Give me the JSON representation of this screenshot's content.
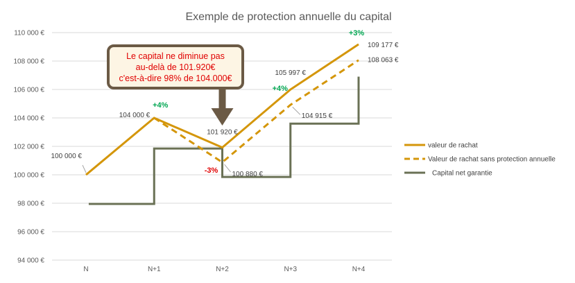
{
  "chart_data": {
    "type": "line",
    "title": "Exemple de protection annuelle du capital",
    "xlabel": "",
    "ylabel": "",
    "categories": [
      "N",
      "N+1",
      "N+2",
      "N+3",
      "N+4"
    ],
    "ylim": [
      94000,
      110000
    ],
    "yticks": [
      94000,
      96000,
      98000,
      100000,
      102000,
      104000,
      106000,
      108000,
      110000
    ],
    "ytick_labels": [
      "94 000 €",
      "96 000 €",
      "98 000 €",
      "100 000 €",
      "102 000 €",
      "104 000 €",
      "106 000 €",
      "108 000 €",
      "110 000 €"
    ],
    "grid": true,
    "legend_position": "right",
    "series": [
      {
        "name": "valeur de rachat",
        "style": "solid",
        "color": "#D4960A",
        "x": [
          0,
          1,
          2,
          3,
          4
        ],
        "values": [
          100000,
          104000,
          101920,
          105997,
          109177
        ]
      },
      {
        "name": "Valeur de rachat sans protection annuelle",
        "style": "dashed",
        "color": "#D4960A",
        "x": [
          1,
          2,
          3,
          4
        ],
        "values": [
          104000,
          100880,
          104915,
          108063
        ]
      },
      {
        "name": "Capital net garantie",
        "style": "step",
        "color": "#6A7155",
        "x": [
          0.04,
          1,
          1,
          2,
          2,
          3,
          3,
          4,
          4
        ],
        "values": [
          97950,
          97950,
          101850,
          101850,
          99850,
          99850,
          103600,
          103600,
          106900
        ]
      }
    ],
    "data_labels": [
      {
        "text": "100 000 €",
        "x": 0,
        "y": 100000
      },
      {
        "text": "104 000 €",
        "x": 1,
        "y": 104000
      },
      {
        "text": "101 920 €",
        "x": 2,
        "y": 101920
      },
      {
        "text": "100 880 €",
        "x": 2,
        "y": 100880
      },
      {
        "text": "105 997 €",
        "x": 3,
        "y": 105997
      },
      {
        "text": "104 915 €",
        "x": 3,
        "y": 104915
      },
      {
        "text": "109 177 €",
        "x": 4,
        "y": 109177
      },
      {
        "text": "108 063 €",
        "x": 4,
        "y": 108063
      }
    ],
    "percent_labels": [
      {
        "text": "+4%",
        "color": "#00A651",
        "x": 1,
        "y": 104000
      },
      {
        "text": "-3%",
        "color": "#E00000",
        "x": 2,
        "y": 100880
      },
      {
        "text": "+4%",
        "color": "#00A651",
        "x": 3,
        "y": 105997
      },
      {
        "text": "+3%",
        "color": "#00A651",
        "x": 4,
        "y": 109177
      }
    ],
    "callout": {
      "lines": [
        "Le capital ne diminue pas",
        "au-delà de 101.920€",
        "c'est-à-dire 98% de 104.000€"
      ],
      "text_color": "#E00000",
      "fill": "#FDF5E4",
      "border": "#6B5A45",
      "arrow_color": "#6B5A45"
    }
  }
}
